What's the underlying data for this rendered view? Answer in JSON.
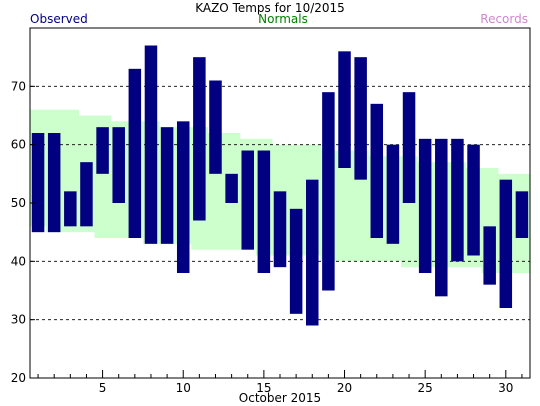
{
  "chart_data": {
    "type": "bar",
    "title": "KAZO Temps for 10/2015",
    "xlabel": "October 2015",
    "ylabel": "",
    "legend": [
      {
        "label": "Observed",
        "color": "#000080"
      },
      {
        "label": "Normals",
        "color": "#008000"
      },
      {
        "label": "Records",
        "color": "#cc88cc"
      }
    ],
    "ylim": [
      20,
      80
    ],
    "yticks": [
      20,
      30,
      40,
      50,
      60,
      70
    ],
    "xlim": [
      0.5,
      31.5
    ],
    "xticks": [
      5,
      10,
      15,
      20,
      25,
      30
    ],
    "grid": "horizontal dashed at 30, 40, 60, 70",
    "days": [
      1,
      2,
      3,
      4,
      5,
      6,
      7,
      8,
      9,
      10,
      11,
      12,
      13,
      14,
      15,
      16,
      17,
      18,
      19,
      20,
      21,
      22,
      23,
      24,
      25,
      26,
      27,
      28,
      29,
      30,
      31
    ],
    "series": [
      {
        "name": "Observed",
        "color": "#000080",
        "high": [
          62,
          62,
          52,
          57,
          63,
          63,
          73,
          77,
          63,
          64,
          75,
          71,
          55,
          59,
          59,
          52,
          49,
          54,
          69,
          76,
          75,
          67,
          60,
          69,
          61,
          61,
          61,
          60,
          46,
          54,
          52
        ],
        "low": [
          45,
          45,
          46,
          46,
          55,
          50,
          44,
          43,
          43,
          38,
          47,
          55,
          50,
          42,
          38,
          39,
          31,
          29,
          35,
          56,
          54,
          44,
          43,
          50,
          38,
          34,
          40,
          41,
          36,
          32,
          44
        ]
      },
      {
        "name": "Normals",
        "color": "#ccffcc",
        "high": [
          66,
          66,
          66,
          65,
          65,
          64,
          64,
          64,
          63,
          63,
          63,
          62,
          62,
          61,
          61,
          60,
          60,
          60,
          59,
          59,
          59,
          58,
          58,
          58,
          57,
          57,
          57,
          56,
          56,
          55,
          55
        ],
        "low": [
          46,
          45,
          45,
          45,
          44,
          44,
          44,
          43,
          43,
          43,
          42,
          42,
          42,
          42,
          41,
          41,
          41,
          41,
          40,
          40,
          40,
          40,
          40,
          39,
          39,
          39,
          39,
          39,
          38,
          38,
          38
        ]
      }
    ]
  }
}
